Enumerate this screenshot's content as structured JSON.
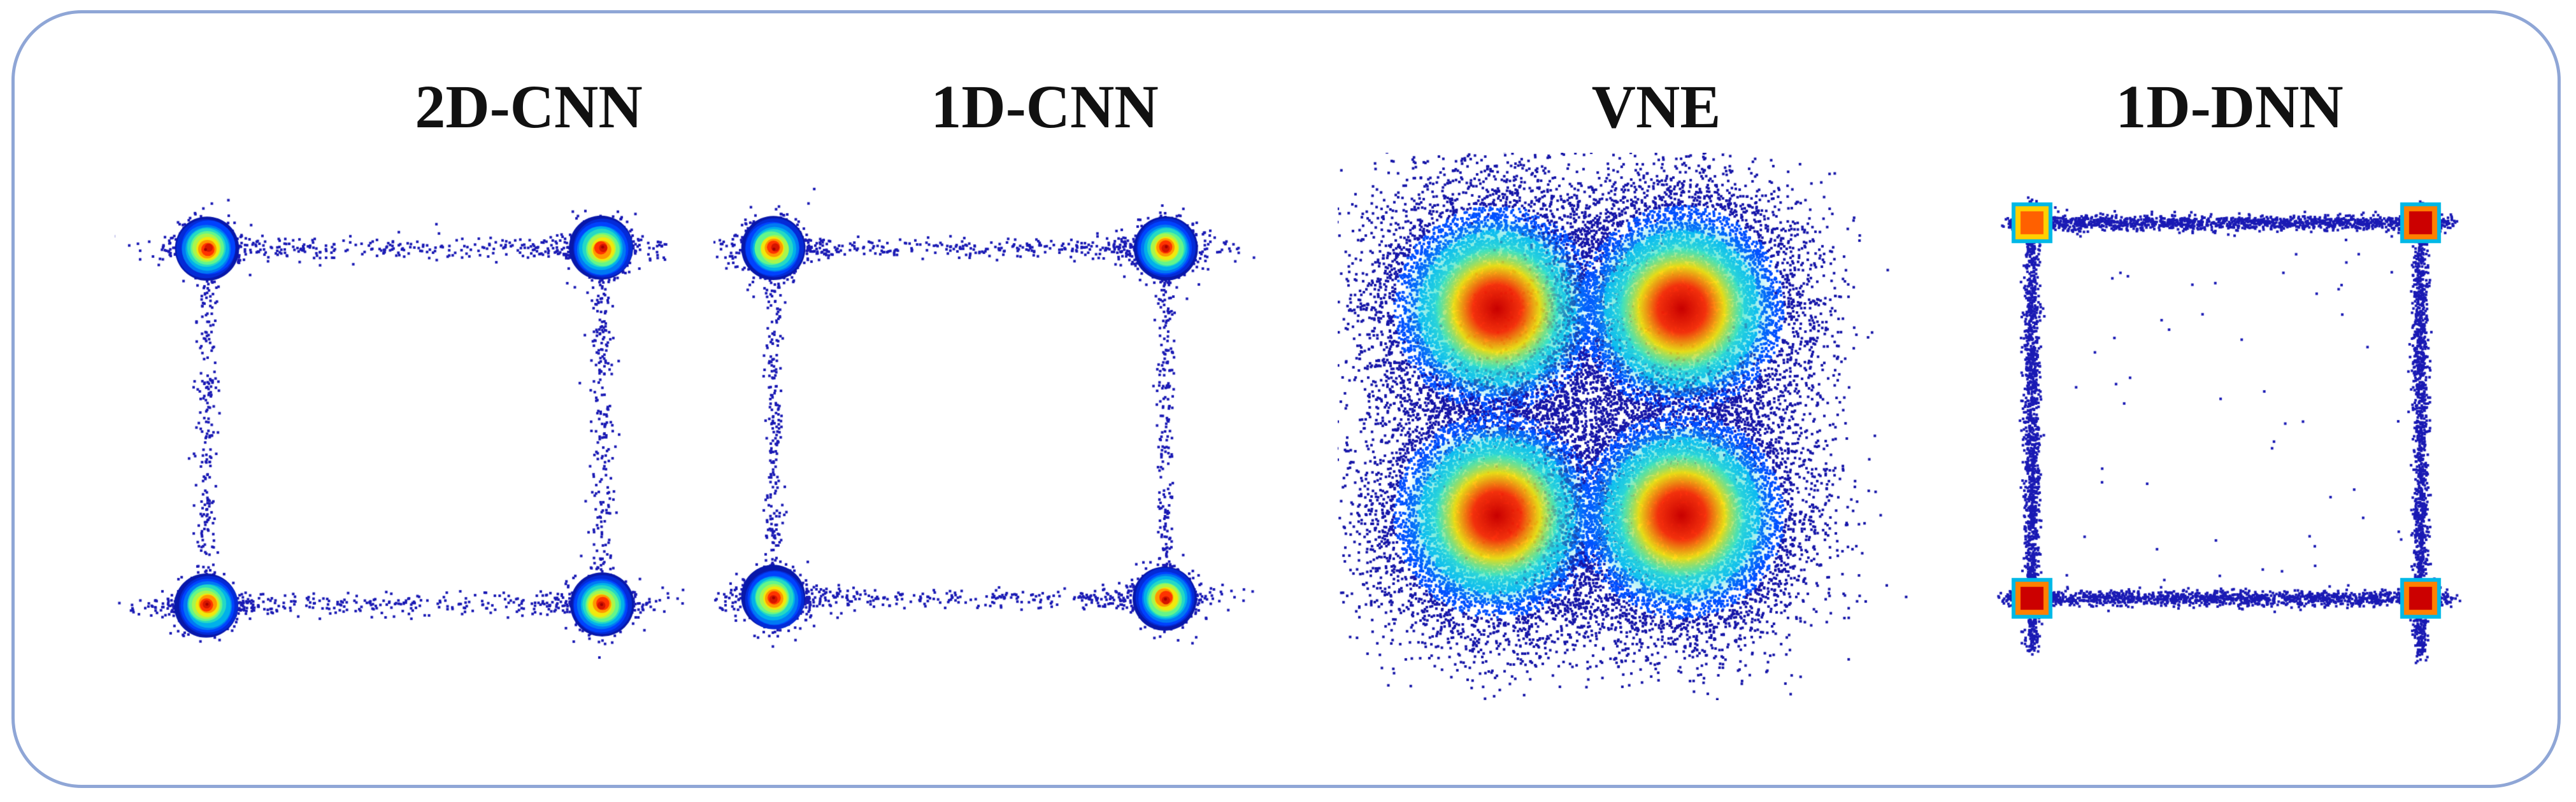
{
  "panels": [
    {
      "title": "2D-CNN",
      "kind": "cnn2d"
    },
    {
      "title": "1D-CNN",
      "kind": "cnn1d"
    },
    {
      "title": "VNE",
      "kind": "vne"
    },
    {
      "title": "1D-DNN",
      "kind": "dnn1d"
    }
  ],
  "colormap": {
    "low": "#0a0a8c",
    "mid": "#00c8e6",
    "high": "#ff1a00",
    "peak": "#a30000"
  }
}
